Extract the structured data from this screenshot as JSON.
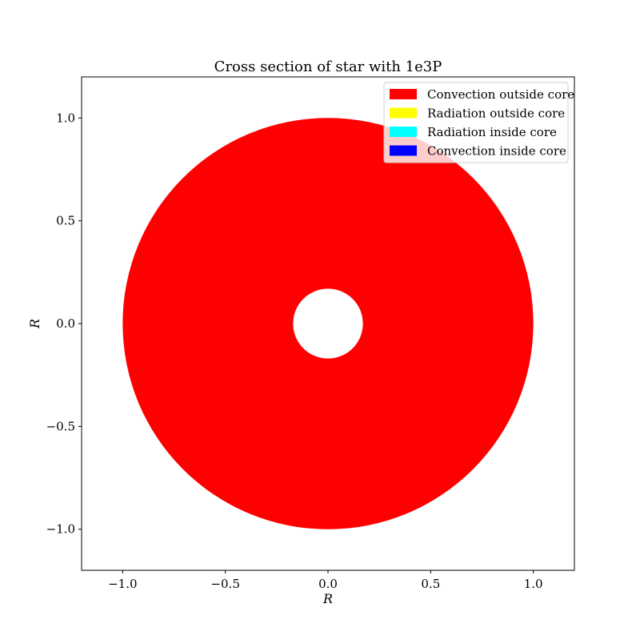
{
  "chart_data": {
    "type": "other",
    "title": "Cross section of star with 1e3P",
    "xlabel": "R",
    "ylabel": "R",
    "xlim": [
      -1.2,
      1.2
    ],
    "ylim": [
      -1.2,
      1.2
    ],
    "x_ticks": [
      -1.0,
      -0.5,
      0.0,
      0.5,
      1.0
    ],
    "y_ticks": [
      -1.0,
      -0.5,
      0.0,
      0.5,
      1.0
    ],
    "x_tick_labels": [
      "−1.0",
      "−0.5",
      "0.0",
      "0.5",
      "1.0"
    ],
    "y_tick_labels": [
      "−1.0",
      "−0.5",
      "0.0",
      "0.5",
      "1.0"
    ],
    "grid": false,
    "legend_position": "upper right",
    "legend": [
      {
        "label": "Convection outside core",
        "color": "#ff0000"
      },
      {
        "label": "Radiation outside core",
        "color": "#ffff00"
      },
      {
        "label": "Radiation inside core",
        "color": "#00ffff"
      },
      {
        "label": "Convection inside core",
        "color": "#0000ff"
      }
    ],
    "regions": [
      {
        "name": "Convection outside core",
        "color": "#ff0000",
        "outer_radius": 1.0,
        "inner_radius": 0.17
      }
    ],
    "background_color": "#ffffff"
  }
}
